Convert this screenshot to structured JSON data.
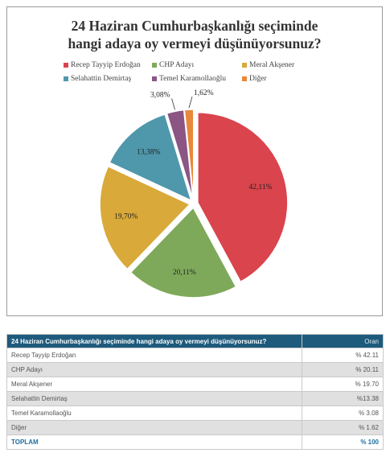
{
  "chart_data": {
    "type": "pie",
    "title": "24 Haziran Cumhurbaşkanlığı seçiminde hangi adaya oy vermeyi düşünüyorsunuz?",
    "title_lines": [
      "24 Haziran Cumhurbaşkanlığı seçiminde",
      "hangi adaya oy vermeyi düşünüyorsunuz?"
    ],
    "legend_position": "top",
    "categories": [
      "Recep Tayyip Erdoğan",
      "CHP Adayı",
      "Meral Akşener",
      "Selahattin Demirtaş",
      "Temel Karamollaoğlu",
      "Diğer"
    ],
    "values": [
      42.11,
      20.11,
      19.7,
      13.38,
      3.08,
      1.62
    ],
    "labels": [
      "42,11%",
      "20,11%",
      "19,70%",
      "13,38%",
      "3,08%",
      "1,62%"
    ],
    "colors": [
      "#d9444d",
      "#7fa95a",
      "#d9a93a",
      "#4f97ab",
      "#8b5584",
      "#e8883a"
    ],
    "exploded": [
      true,
      true,
      true,
      true,
      true,
      true
    ]
  },
  "table": {
    "header": {
      "question": "24 Haziran Cumhurbaşkanlığı seçiminde hangi adaya oy vermeyi düşünüyorsunuz?",
      "value_col": "Oran"
    },
    "rows": [
      {
        "label": "Recep Tayyip Erdoğan",
        "value": "% 42.11"
      },
      {
        "label": "CHP Adayı",
        "value": "% 20.11"
      },
      {
        "label": "Meral Akşener",
        "value": "% 19.70"
      },
      {
        "label": "Selahattin Demirtaş",
        "value": "%13.38"
      },
      {
        "label": "Temel Karamollaoğlu",
        "value": "% 3.08"
      },
      {
        "label": "Diğer",
        "value": "% 1.62"
      }
    ],
    "total": {
      "label": "TOPLAM",
      "value": "% 100"
    }
  }
}
